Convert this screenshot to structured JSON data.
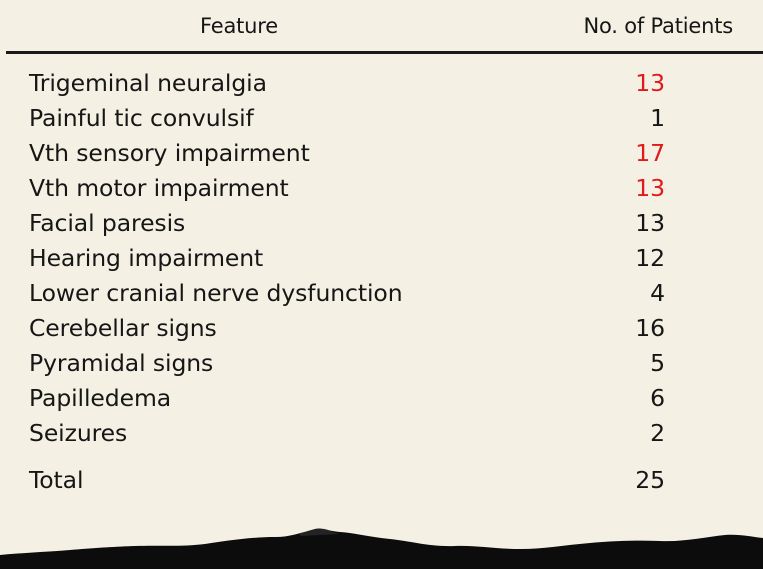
{
  "table": {
    "header": {
      "feature": "Feature",
      "patients": "No. of Patients"
    },
    "rows": [
      {
        "feature": "Trigeminal neuralgia",
        "patients": "13",
        "highlight": true
      },
      {
        "feature": "Painful tic convulsif",
        "patients": "1",
        "highlight": false
      },
      {
        "feature": "Vth sensory impairment",
        "patients": "17",
        "highlight": true
      },
      {
        "feature": "Vth motor impairment",
        "patients": "13",
        "highlight": true
      },
      {
        "feature": "Facial paresis",
        "patients": "13",
        "highlight": false
      },
      {
        "feature": "Hearing impairment",
        "patients": "12",
        "highlight": false
      },
      {
        "feature": "Lower cranial nerve dysfunction",
        "patients": "4",
        "highlight": false
      },
      {
        "feature": "Cerebellar signs",
        "patients": "16",
        "highlight": false
      },
      {
        "feature": "Pyramidal signs",
        "patients": "5",
        "highlight": false
      },
      {
        "feature": "Papilledema",
        "patients": "6",
        "highlight": false
      },
      {
        "feature": "Seizures",
        "patients": "2",
        "highlight": false
      }
    ],
    "total": {
      "feature": "Total",
      "patients": "25"
    }
  },
  "colors": {
    "background": "#f4f0e4",
    "text": "#161616",
    "highlight": "#e01a1a"
  }
}
